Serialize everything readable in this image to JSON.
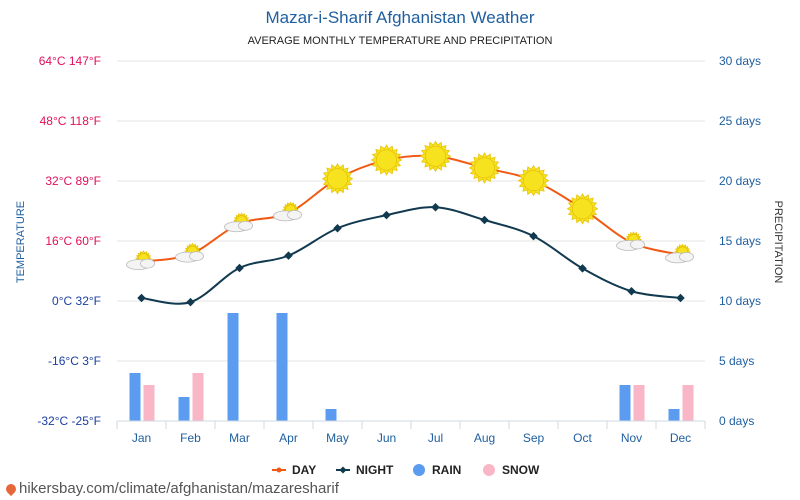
{
  "title": "Mazar-i-Sharif Afghanistan Weather",
  "subtitle": "AVERAGE MONTHLY TEMPERATURE AND PRECIPITATION",
  "source": "hikersbay.com/climate/afghanistan/mazaresharif",
  "colors": {
    "day": "#f05a14",
    "night": "#11394f",
    "rain": "#5b9cf0",
    "snow": "#f9b6c6",
    "left_axis": "#e0105a",
    "left_axis_low": "#1a3fa0",
    "right_axis": "#1f5fa0",
    "month_axis": "#1f5fa0",
    "grid": "#e6e6e6",
    "sun": "#f7e21f"
  },
  "chart_data": {
    "type": "line",
    "categories": [
      "Jan",
      "Feb",
      "Mar",
      "Apr",
      "May",
      "Jun",
      "Jul",
      "Aug",
      "Sep",
      "Oct",
      "Nov",
      "Dec"
    ],
    "left_axis": {
      "label": "TEMPERATURE",
      "ylim": [
        -32,
        64
      ],
      "ticks": [
        {
          "value": 64,
          "label": "64°C 147°F"
        },
        {
          "value": 48,
          "label": "48°C 118°F"
        },
        {
          "value": 32,
          "label": "32°C 89°F"
        },
        {
          "value": 16,
          "label": "16°C 60°F"
        },
        {
          "value": 0,
          "label": "0°C 32°F"
        },
        {
          "value": -16,
          "label": "-16°C 3°F"
        },
        {
          "value": -32,
          "label": "-32°C -25°F"
        }
      ]
    },
    "right_axis": {
      "label": "PRECIPITATION",
      "ylim": [
        0,
        30
      ],
      "ticks": [
        {
          "value": 30,
          "label": "30 days"
        },
        {
          "value": 25,
          "label": "25 days"
        },
        {
          "value": 20,
          "label": "20 days"
        },
        {
          "value": 15,
          "label": "15 days"
        },
        {
          "value": 10,
          "label": "10 days"
        },
        {
          "value": 5,
          "label": "5 days"
        },
        {
          "value": 0,
          "label": "0 days"
        }
      ]
    },
    "series": [
      {
        "name": "DAY",
        "kind": "line",
        "axis": "left",
        "values": [
          10.5,
          12.5,
          20.6,
          23.5,
          32.6,
          37.6,
          38.6,
          35.5,
          32.1,
          24.6,
          15.6,
          12.3
        ]
      },
      {
        "name": "NIGHT",
        "kind": "line",
        "axis": "left",
        "values": [
          0.8,
          -0.3,
          8.8,
          12.1,
          19.4,
          22.9,
          25.0,
          21.6,
          17.3,
          8.7,
          2.6,
          0.8
        ]
      },
      {
        "name": "RAIN",
        "kind": "bar",
        "axis": "right",
        "values": [
          4,
          2,
          9,
          9,
          1,
          0,
          0,
          0,
          0,
          0,
          3,
          1
        ]
      },
      {
        "name": "SNOW",
        "kind": "bar",
        "axis": "right",
        "values": [
          3,
          4,
          0,
          0,
          0,
          0,
          0,
          0,
          0,
          0,
          3,
          3
        ]
      }
    ],
    "weather_icons": [
      "partly-cloudy",
      "partly-cloudy",
      "partly-cloudy",
      "partly-cloudy",
      "sunny",
      "sunny",
      "sunny",
      "sunny",
      "sunny",
      "sunny",
      "partly-cloudy",
      "partly-cloudy"
    ],
    "legend_position": "bottom-center",
    "grid": true
  }
}
